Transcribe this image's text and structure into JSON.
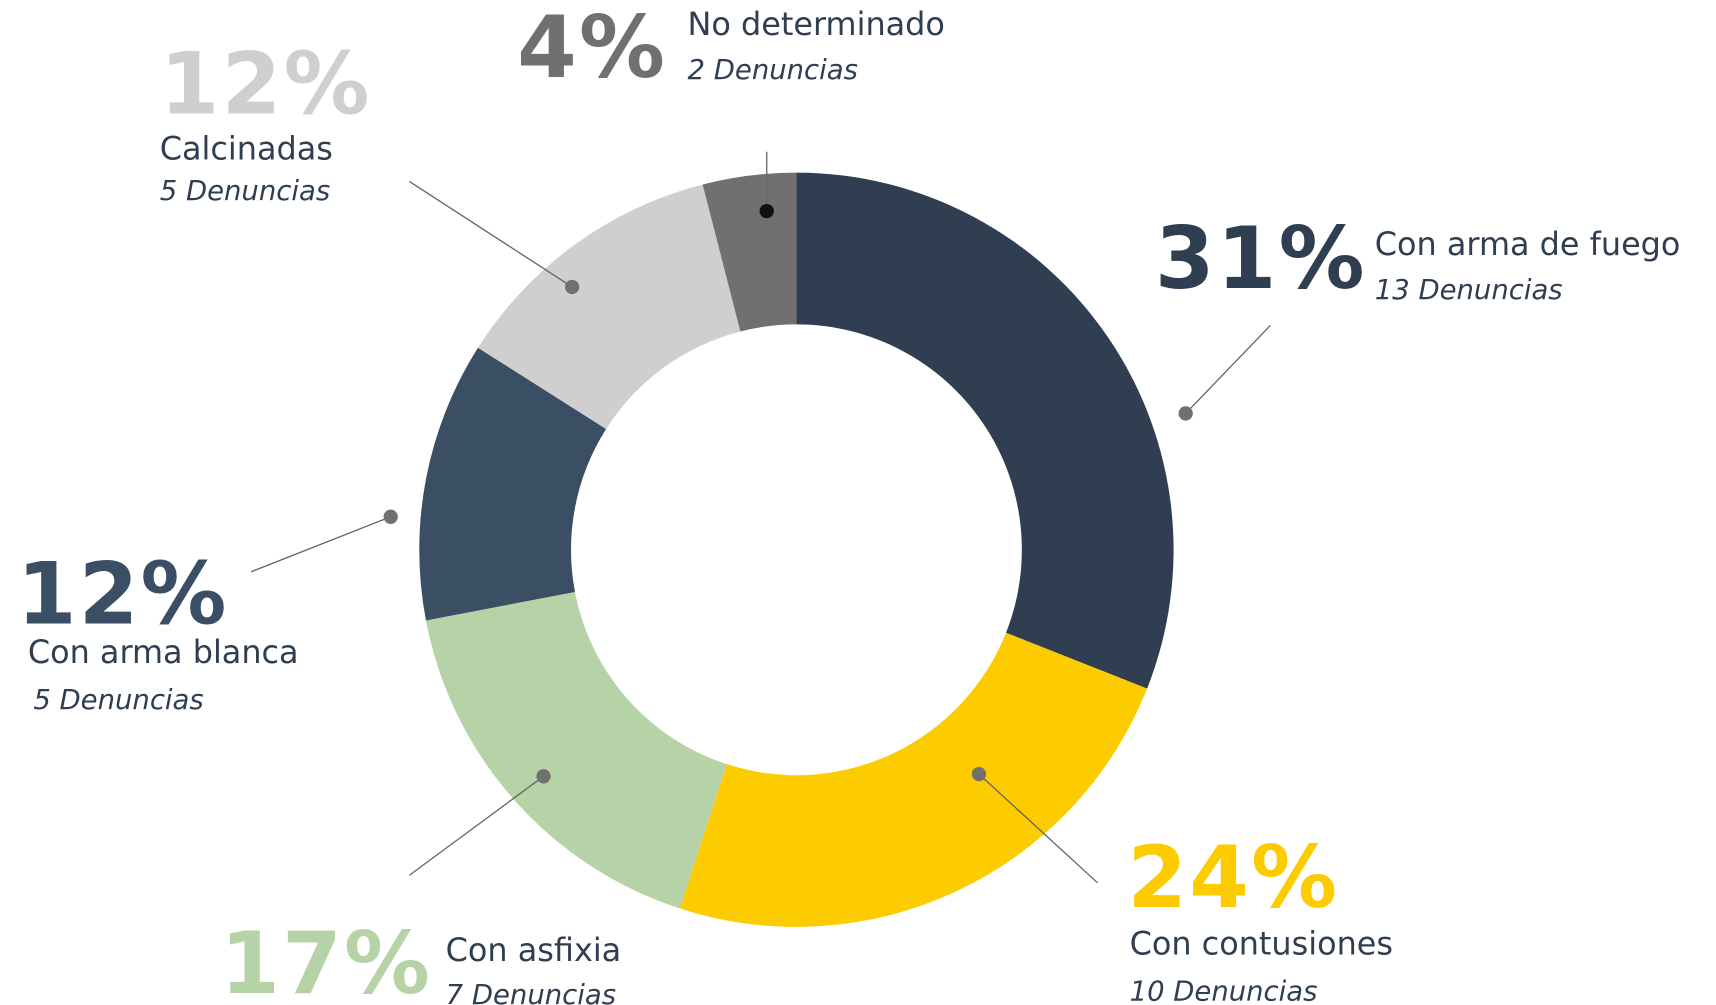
{
  "chart_data": {
    "type": "pie",
    "categories": [
      "Con arma de fuego",
      "Con contusiones",
      "Con asfixia",
      "Con arma blanca",
      "Calcinadas",
      "No determinado"
    ],
    "values": [
      31,
      24,
      17,
      12,
      12,
      4
    ],
    "value_labels": [
      "31%",
      "24%",
      "17%",
      "12%",
      "12%",
      "4%"
    ],
    "details": [
      "13 Denuncias",
      "10 Denuncias",
      "7 Denuncias",
      "5 Denuncias",
      "5 Denuncias",
      "2 Denuncias"
    ],
    "colors": [
      "#2f3f51",
      "#fdcc00",
      "#b6d3a8",
      "#3a4f64",
      "#d0cfcf",
      "#72706f"
    ]
  }
}
